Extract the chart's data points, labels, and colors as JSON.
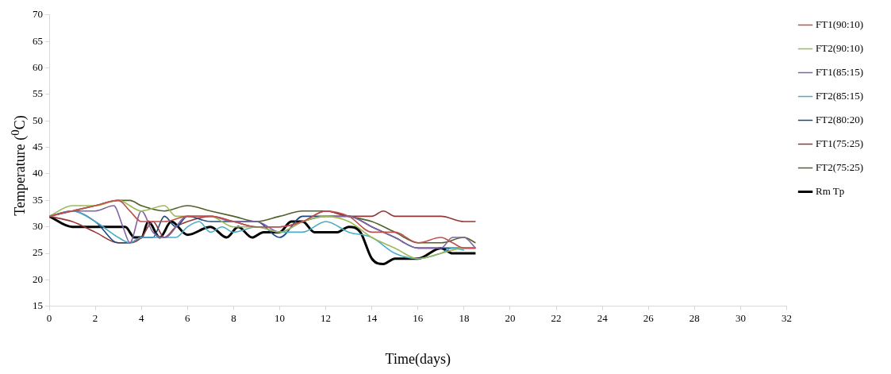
{
  "chart_data": {
    "type": "line",
    "xlabel": "Time(days)",
    "ylabel": "Temperature ($^{0}$C)",
    "xlim": [
      0,
      32
    ],
    "xticks": [
      0,
      2,
      4,
      6,
      8,
      10,
      12,
      14,
      16,
      18,
      20,
      22,
      24,
      26,
      28,
      30,
      32
    ],
    "ylim": [
      15,
      70
    ],
    "yticks": [
      15,
      20,
      25,
      30,
      35,
      40,
      45,
      50,
      55,
      60,
      65,
      70
    ],
    "grid": false,
    "legend": "right",
    "marker": "none",
    "line_style": "solid",
    "series": [
      {
        "name": "FT1(90:10)",
        "color": "#c0504d",
        "x": [
          0,
          1,
          2,
          3,
          3.5,
          4,
          5,
          6,
          7,
          8,
          9,
          10,
          11,
          12,
          13,
          14,
          15,
          16,
          17,
          17.5,
          18,
          18.5
        ],
        "values": [
          32,
          33,
          34,
          35,
          33,
          31,
          31,
          32,
          32,
          31,
          30,
          30,
          31,
          33,
          32,
          29,
          29,
          27,
          28,
          27,
          26,
          26
        ]
      },
      {
        "name": "FT2(90:10)",
        "color": "#9bbb59",
        "x": [
          0,
          1,
          2,
          3,
          4,
          5,
          5.5,
          6,
          7,
          8,
          9,
          10,
          11,
          12,
          13,
          14,
          15,
          16,
          17,
          18,
          18.5
        ],
        "values": [
          32,
          34,
          34,
          35,
          33,
          34,
          32,
          32,
          32,
          30,
          30,
          29,
          31,
          32,
          31,
          28,
          26,
          24,
          25,
          26,
          26
        ]
      },
      {
        "name": "FT1(85:15)",
        "color": "#8064a2",
        "x": [
          0,
          1,
          2,
          2.8,
          3.2,
          3.5,
          4,
          4.5,
          5,
          6,
          7,
          8,
          9,
          10,
          11,
          12,
          13,
          14,
          15,
          16,
          17,
          17.5,
          18,
          18.5
        ],
        "values": [
          32,
          33,
          33,
          34,
          30,
          27,
          33,
          29,
          28,
          32,
          32,
          31,
          31,
          29,
          31,
          32,
          32,
          30,
          28,
          26,
          26,
          28,
          28,
          26
        ]
      },
      {
        "name": "FT2(85:15)",
        "color": "#4bacc6",
        "x": [
          0,
          1,
          2,
          3,
          3.5,
          4,
          5,
          5.5,
          6,
          6.5,
          7,
          7.5,
          8,
          9,
          10,
          11,
          12,
          13,
          14,
          15,
          16,
          17,
          17.5,
          18
        ],
        "values": [
          32,
          33,
          31,
          28,
          27,
          28,
          28,
          28,
          30,
          31,
          29,
          30,
          29,
          30,
          29,
          29,
          31,
          29,
          28,
          25,
          24,
          25,
          26,
          25.6
        ]
      },
      {
        "name": "FT2(80:20)",
        "color": "#1f497d",
        "x": [
          0,
          1,
          2,
          3,
          3.5,
          4,
          4.5,
          5,
          5.5,
          6,
          7,
          8,
          9,
          10,
          11,
          12,
          13,
          14,
          15,
          16,
          17,
          18,
          18.5
        ],
        "values": [
          32,
          33,
          31,
          27,
          27,
          28,
          28,
          32,
          30,
          32,
          31,
          31,
          31,
          28,
          32,
          32,
          32,
          30,
          28,
          26,
          26,
          26,
          26
        ]
      },
      {
        "name": "FT1(75:25)",
        "color": "#943634",
        "x": [
          0,
          1,
          2,
          3,
          3.5,
          4,
          4.5,
          5,
          5.5,
          6,
          7,
          8,
          9,
          10,
          11,
          12,
          13,
          14,
          14.5,
          15,
          16,
          17,
          18,
          18.5
        ],
        "values": [
          32,
          31,
          29,
          27,
          27,
          28,
          31,
          28,
          30,
          31,
          32,
          31,
          30,
          30,
          31,
          33,
          32,
          32,
          33,
          32,
          32,
          32,
          31,
          31
        ]
      },
      {
        "name": "FT2(75:25)",
        "color": "#4f6228",
        "x": [
          0,
          1,
          2,
          3,
          3.5,
          4,
          5,
          6,
          7,
          8,
          9,
          10,
          11,
          12,
          13,
          14,
          15,
          16,
          17,
          18,
          18.5
        ],
        "values": [
          32,
          33,
          34,
          35,
          35,
          34,
          33,
          34,
          33,
          32,
          31,
          32,
          33,
          33,
          32,
          31,
          29,
          27,
          27,
          28,
          27
        ]
      },
      {
        "name": "Rm Tp",
        "color": "#000000",
        "x": [
          0,
          1,
          2,
          3.3,
          3.7,
          4,
          4.3,
          4.8,
          5.3,
          6,
          7,
          7.7,
          8.2,
          8.8,
          9.3,
          10,
          10.5,
          11,
          11.5,
          12,
          12.5,
          13,
          13.5,
          14,
          14.5,
          15,
          16,
          17,
          17.5,
          18.5
        ],
        "values": [
          32,
          30,
          30,
          30,
          28,
          28,
          31,
          28,
          31,
          28.5,
          30,
          28,
          30,
          28,
          29,
          29,
          31,
          31,
          29,
          29,
          29,
          30,
          29,
          24,
          23,
          24,
          24,
          26,
          25,
          25
        ]
      }
    ]
  }
}
